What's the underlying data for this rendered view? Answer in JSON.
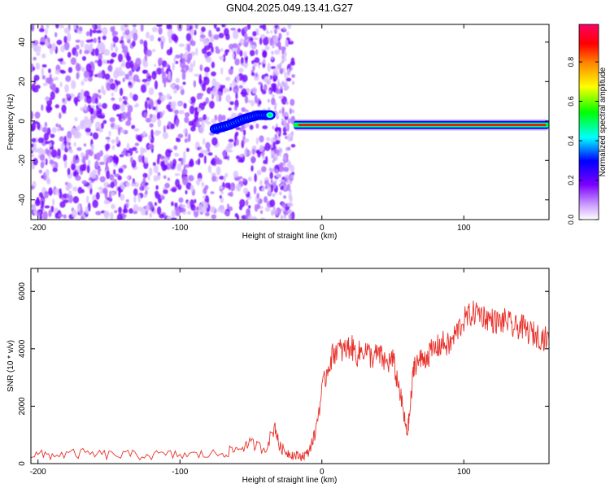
{
  "title": "GN04.2025.049.13.41.G27",
  "chart_data": [
    {
      "type": "heatmap",
      "xlabel": "Height of straight line (km)",
      "ylabel": "Frequency (Hz)",
      "xlim": [
        -205,
        160
      ],
      "ylim": [
        -50,
        49
      ],
      "xticks": [
        -200,
        -100,
        0,
        100
      ],
      "yticks": [
        -40,
        -20,
        0,
        20,
        40
      ],
      "colorbar": {
        "label": "Normalized spectral amplitude",
        "range": [
          0,
          0.99
        ],
        "ticks": [
          "0.0",
          "0.2",
          "0.4",
          "0.6",
          "0.8"
        ],
        "tick_values": [
          0,
          0.2,
          0.4,
          0.6,
          0.8
        ],
        "colormap": [
          "#ffffff",
          "#c896ff",
          "#7a00ff",
          "#0000ff",
          "#00ffff",
          "#00ff00",
          "#ffff00",
          "#ff8800",
          "#ff0000",
          "#ff0066"
        ]
      },
      "features": {
        "noise_region_km": [
          -205,
          -20
        ],
        "rising_trace": [
          [
            -75,
            -4
          ],
          [
            -65,
            -2
          ],
          [
            -55,
            1
          ],
          [
            -45,
            3
          ],
          [
            -35,
            3
          ]
        ],
        "steady_line_km": [
          -20,
          160
        ],
        "steady_line_freq_hz": -2
      }
    },
    {
      "type": "line",
      "xlabel": "Height of straight line (km)",
      "ylabel": "SNR (10 * v/v)",
      "xlim": [
        -205,
        160
      ],
      "ylim": [
        0,
        6800
      ],
      "xticks": [
        -200,
        -100,
        0,
        100
      ],
      "yticks": [
        0,
        2000,
        4000,
        6000
      ],
      "color": "#e8312a",
      "series": [
        {
          "x": [
            -205,
            -190,
            -170,
            -150,
            -130,
            -110,
            -90,
            -70,
            -60,
            -50,
            -40,
            -33,
            -30,
            -25,
            -20,
            -15,
            -10,
            -5,
            0,
            5,
            10,
            15,
            20,
            25,
            30,
            35,
            40,
            45,
            50,
            55,
            58,
            60,
            62,
            65,
            70,
            75,
            80,
            85,
            90,
            95,
            100,
            105,
            110,
            115,
            120,
            125,
            130,
            135,
            140,
            145,
            150,
            155,
            160
          ],
          "y": [
            300,
            300,
            350,
            300,
            300,
            300,
            300,
            350,
            500,
            700,
            500,
            1300,
            600,
            400,
            300,
            250,
            350,
            1000,
            2500,
            3500,
            4000,
            3900,
            4100,
            3800,
            4000,
            3700,
            3800,
            3500,
            3600,
            2500,
            1600,
            1000,
            1800,
            3500,
            3600,
            3800,
            4000,
            4200,
            4100,
            4600,
            5000,
            5200,
            5300,
            5100,
            5000,
            4900,
            5000,
            4700,
            4800,
            4600,
            4500,
            4400,
            4300
          ]
        }
      ]
    }
  ]
}
